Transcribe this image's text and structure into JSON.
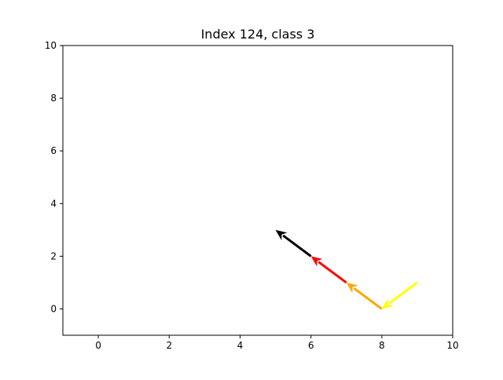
{
  "chart_data": {
    "type": "quiver",
    "title": "Index 124, class 3",
    "xlabel": "",
    "ylabel": "",
    "xlim": [
      -1,
      10
    ],
    "ylim": [
      -1,
      10
    ],
    "x_ticks": [
      0,
      2,
      4,
      6,
      8,
      10
    ],
    "y_ticks": [
      0,
      2,
      4,
      6,
      8,
      10
    ],
    "grid": false,
    "arrows": [
      {
        "x0": 9,
        "y0": 1,
        "x1": 8,
        "y1": 0,
        "color": "#ffff00"
      },
      {
        "x0": 8,
        "y0": 0,
        "x1": 7,
        "y1": 1,
        "color": "#ffa500"
      },
      {
        "x0": 7,
        "y0": 1,
        "x1": 6,
        "y1": 2,
        "color": "#ff0000"
      },
      {
        "x0": 6,
        "y0": 2,
        "x1": 5,
        "y1": 3,
        "color": "#000000"
      }
    ]
  }
}
